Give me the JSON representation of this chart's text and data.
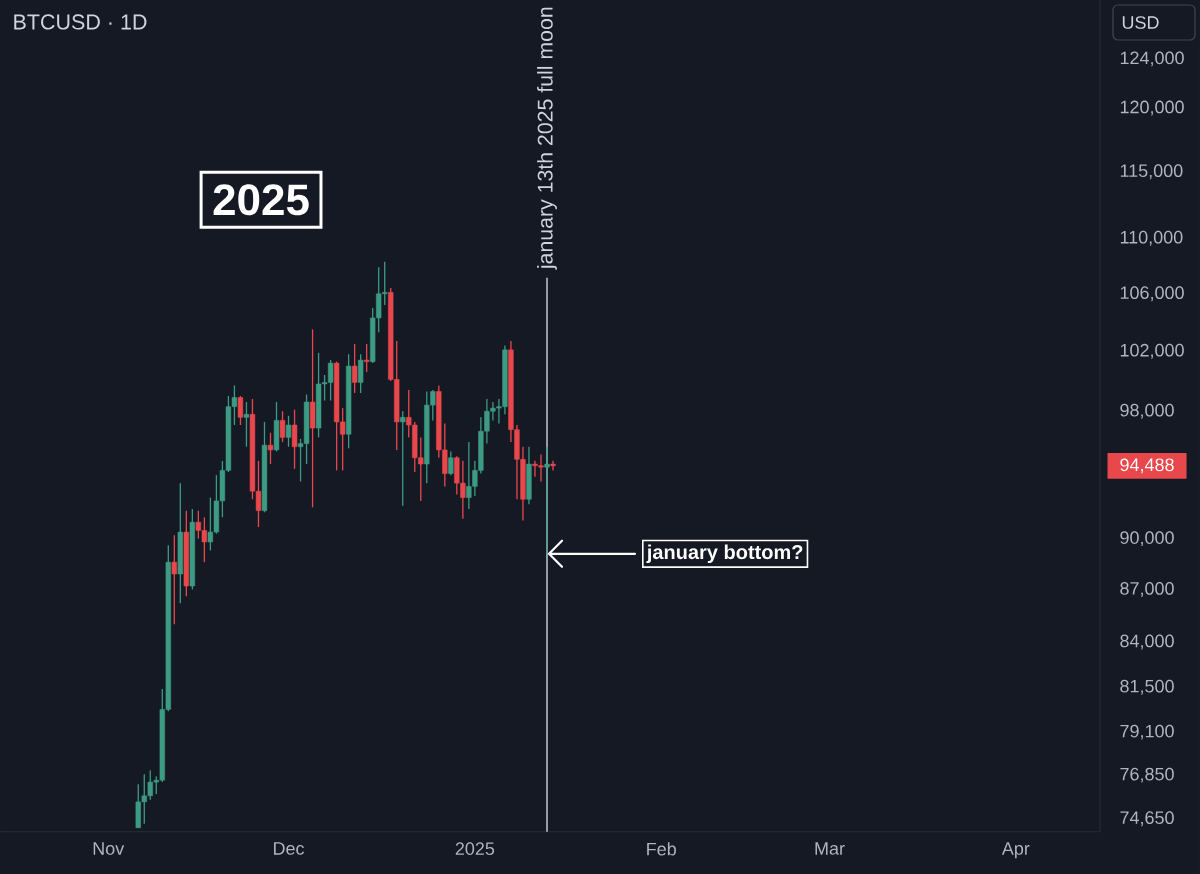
{
  "chart_data": {
    "type": "candlestick",
    "title": "BTCUSD · 1D",
    "annotations": [
      "2025",
      "USD",
      "94,488",
      {
        "text": "january bottom?",
        "x": "2025-01-13",
        "y": 89100
      }
    ],
    "x": [
      "2024-11-06",
      "2024-11-07",
      "2024-11-08",
      "2024-11-09",
      "2024-11-10",
      "2024-11-11",
      "2024-11-12",
      "2024-11-13",
      "2024-11-14",
      "2024-11-15",
      "2024-11-16",
      "2024-11-17",
      "2024-11-18",
      "2024-11-19",
      "2024-11-20",
      "2024-11-21",
      "2024-11-22",
      "2024-11-23",
      "2024-11-24",
      "2024-11-25",
      "2024-11-26",
      "2024-11-27",
      "2024-11-28",
      "2024-11-29",
      "2024-11-30",
      "2024-12-01",
      "2024-12-02",
      "2024-12-03",
      "2024-12-04",
      "2024-12-05",
      "2024-12-06",
      "2024-12-07",
      "2024-12-08",
      "2024-12-09",
      "2024-12-10",
      "2024-12-11",
      "2024-12-12",
      "2024-12-13",
      "2024-12-14",
      "2024-12-15",
      "2024-12-16",
      "2024-12-17",
      "2024-12-18",
      "2024-12-19",
      "2024-12-20",
      "2024-12-21",
      "2024-12-22",
      "2024-12-23",
      "2024-12-24",
      "2024-12-25",
      "2024-12-26",
      "2024-12-27",
      "2024-12-28",
      "2024-12-29",
      "2024-12-30",
      "2024-12-31",
      "2025-01-01",
      "2025-01-02",
      "2025-01-03",
      "2025-01-04",
      "2025-01-05",
      "2025-01-06",
      "2025-01-07",
      "2025-01-08",
      "2025-01-09",
      "2025-01-10",
      "2025-01-11",
      "2025-01-12",
      "2025-01-13",
      "2025-01-14"
    ],
    "ohlc": [
      [
        74200,
        76400,
        74200,
        75500
      ],
      [
        75500,
        76900,
        74400,
        75800
      ],
      [
        75800,
        77100,
        75600,
        76500
      ],
      [
        76500,
        76800,
        75900,
        76600
      ],
      [
        76600,
        81400,
        76500,
        80300
      ],
      [
        80300,
        89600,
        80200,
        88600
      ],
      [
        88600,
        90200,
        85000,
        87900
      ],
      [
        87900,
        93400,
        86200,
        90400
      ],
      [
        90400,
        91700,
        86600,
        87200
      ],
      [
        87200,
        91800,
        87000,
        91000
      ],
      [
        91000,
        91700,
        90000,
        90500
      ],
      [
        90500,
        91300,
        88600,
        89800
      ],
      [
        89800,
        92500,
        89300,
        90400
      ],
      [
        90400,
        93900,
        90300,
        92300
      ],
      [
        92300,
        94800,
        91300,
        94200
      ],
      [
        94200,
        99000,
        94100,
        98300
      ],
      [
        98300,
        99700,
        97100,
        98900
      ],
      [
        98900,
        99000,
        97100,
        97600
      ],
      [
        97600,
        98600,
        95700,
        97800
      ],
      [
        97800,
        98800,
        92400,
        92900
      ],
      [
        92900,
        94800,
        90700,
        91700
      ],
      [
        91700,
        97300,
        91600,
        95800
      ],
      [
        95800,
        96600,
        94600,
        95500
      ],
      [
        95500,
        98600,
        95400,
        97400
      ],
      [
        97400,
        98000,
        96000,
        96300
      ],
      [
        96300,
        97700,
        95700,
        97100
      ],
      [
        97100,
        98100,
        94300,
        95700
      ],
      [
        95700,
        96200,
        93500,
        95900
      ],
      [
        95900,
        99100,
        94600,
        98600
      ],
      [
        98600,
        103500,
        91900,
        96900
      ],
      [
        96900,
        101900,
        96300,
        99800
      ],
      [
        99800,
        100400,
        98700,
        99900
      ],
      [
        99900,
        101400,
        98700,
        101200
      ],
      [
        101200,
        101300,
        94200,
        97300
      ],
      [
        97300,
        98200,
        94200,
        96500
      ],
      [
        96500,
        101800,
        95600,
        101000
      ],
      [
        101000,
        102500,
        99200,
        99900
      ],
      [
        99900,
        101800,
        99200,
        101400
      ],
      [
        101400,
        102500,
        100600,
        101300
      ],
      [
        101300,
        105000,
        101200,
        104300
      ],
      [
        104300,
        107900,
        103300,
        106000
      ],
      [
        106000,
        108300,
        105200,
        106100
      ],
      [
        106100,
        106400,
        100000,
        100100
      ],
      [
        100100,
        102700,
        95500,
        97300
      ],
      [
        97300,
        98000,
        92000,
        97600
      ],
      [
        97600,
        99400,
        96300,
        97100
      ],
      [
        97100,
        97300,
        94100,
        95000
      ],
      [
        95000,
        96300,
        92300,
        94600
      ],
      [
        94600,
        99300,
        93400,
        98400
      ],
      [
        98400,
        99400,
        97400,
        99300
      ],
      [
        99300,
        99700,
        95000,
        95500
      ],
      [
        95500,
        97200,
        93200,
        94000
      ],
      [
        94000,
        95400,
        93900,
        95000
      ],
      [
        95000,
        95100,
        92700,
        93400
      ],
      [
        93400,
        94800,
        91200,
        92500
      ],
      [
        92500,
        96000,
        91800,
        93200
      ],
      [
        93200,
        94800,
        92600,
        94200
      ],
      [
        94200,
        97600,
        94000,
        96700
      ],
      [
        96700,
        98800,
        95900,
        98000
      ],
      [
        98000,
        98600,
        97400,
        98200
      ],
      [
        98200,
        98800,
        97200,
        98300
      ],
      [
        98300,
        102400,
        97800,
        102100
      ],
      [
        102100,
        102700,
        96000,
        96800
      ],
      [
        96800,
        97100,
        92400,
        94900
      ],
      [
        94900,
        95700,
        91100,
        92400
      ],
      [
        92400,
        95700,
        92100,
        94600
      ],
      [
        94600,
        94800,
        93800,
        94500
      ],
      [
        94500,
        95200,
        93500,
        94400
      ],
      [
        94400,
        95700,
        89100,
        94600
      ],
      [
        94600,
        94800,
        94200,
        94488
      ]
    ],
    "colors": [
      "#3d9b84",
      "#3d9b84",
      "#3d9b84",
      "#3d9b84",
      "#3d9b84",
      "#3d9b84",
      "#e8484c",
      "#3d9b84",
      "#e8484c",
      "#3d9b84",
      "#e8484c",
      "#e8484c",
      "#3d9b84",
      "#3d9b84",
      "#3d9b84",
      "#3d9b84",
      "#3d9b84",
      "#e8484c",
      "#3d9b84",
      "#e8484c",
      "#e8484c",
      "#3d9b84",
      "#e8484c",
      "#3d9b84",
      "#e8484c",
      "#3d9b84",
      "#e8484c",
      "#3d9b84",
      "#3d9b84",
      "#e8484c",
      "#3d9b84",
      "#3d9b84",
      "#3d9b84",
      "#e8484c",
      "#e8484c",
      "#3d9b84",
      "#e8484c",
      "#3d9b84",
      "#e8484c",
      "#3d9b84",
      "#3d9b84",
      "#3d9b84",
      "#e8484c",
      "#e8484c",
      "#3d9b84",
      "#e8484c",
      "#e8484c",
      "#e8484c",
      "#3d9b84",
      "#3d9b84",
      "#e8484c",
      "#e8484c",
      "#3d9b84",
      "#e8484c",
      "#e8484c",
      "#3d9b84",
      "#3d9b84",
      "#3d9b84",
      "#3d9b84",
      "#3d9b84",
      "#3d9b84",
      "#3d9b84",
      "#e8484c",
      "#e8484c",
      "#e8484c",
      "#3d9b84",
      "#e8484c",
      "#e8484c",
      "#3d9b84",
      "#e8484c"
    ],
    "xlim": [
      "2024-10-14",
      "2025-04-15"
    ],
    "xticks": [
      {
        "value": "2024-11-01",
        "label": "Nov"
      },
      {
        "value": "2024-12-01",
        "label": "Dec"
      },
      {
        "value": "2025-01-01",
        "label": "2025"
      },
      {
        "value": "2025-02-01",
        "label": "Feb"
      },
      {
        "value": "2025-03-01",
        "label": "Mar"
      },
      {
        "value": "2025-04-01",
        "label": "Apr"
      }
    ],
    "ylim": [
      74000,
      129000
    ],
    "yticks": [
      {
        "value": 74650,
        "label": "74,650"
      },
      {
        "value": 76850,
        "label": "76,850"
      },
      {
        "value": 79100,
        "label": "79,100"
      },
      {
        "value": 81500,
        "label": "81,500"
      },
      {
        "value": 84000,
        "label": "84,000"
      },
      {
        "value": 87000,
        "label": "87,000"
      },
      {
        "value": 90000,
        "label": "90,000"
      },
      {
        "value": 98000,
        "label": "98,000"
      },
      {
        "value": 102000,
        "label": "102,000"
      },
      {
        "value": 106000,
        "label": "106,000"
      },
      {
        "value": 110000,
        "label": "110,000"
      },
      {
        "value": 115000,
        "label": "115,000"
      },
      {
        "value": 120000,
        "label": "120,000"
      },
      {
        "value": 124000,
        "label": "124,000"
      }
    ],
    "log": "y",
    "ref_lines": [
      {
        "axis": "x",
        "value": "2025-01-13",
        "label": "january 13th 2025 full moon",
        "color": "#d1d4dc"
      }
    ]
  }
}
